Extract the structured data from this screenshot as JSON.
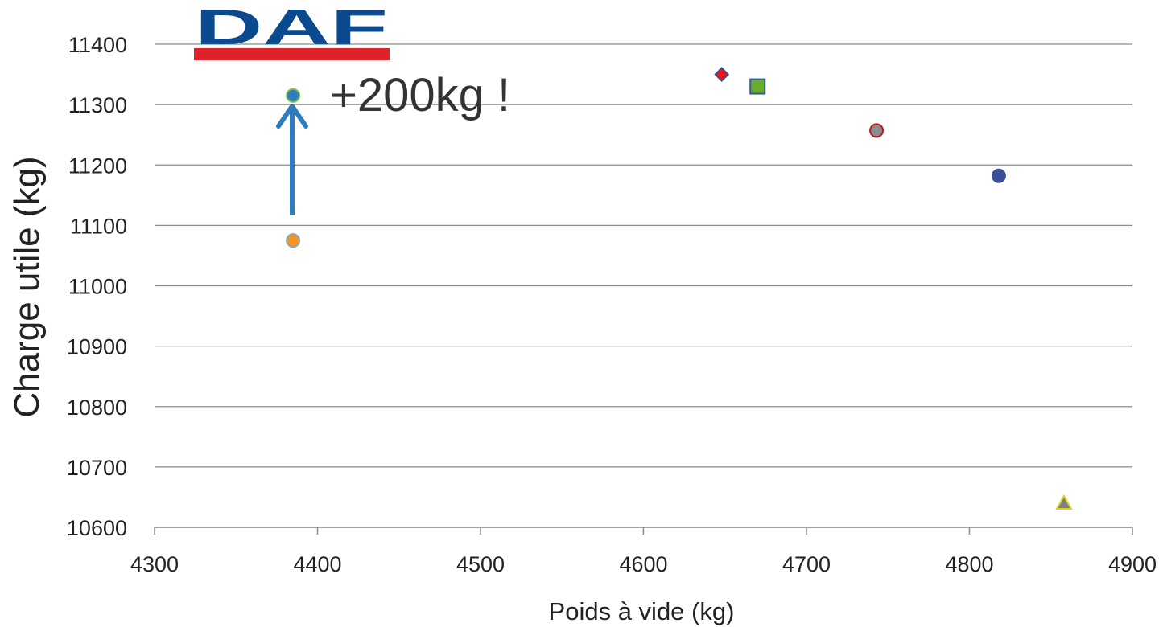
{
  "logo": {
    "text": "DAF",
    "color": "#0b4a8f",
    "bar_color": "#e1202a"
  },
  "annotation": {
    "text": "+200kg !",
    "arrow_color": "#2e7dbf"
  },
  "chart_data": {
    "type": "scatter",
    "title": "",
    "xlabel": "Poids à vide (kg)",
    "ylabel": "Charge utile (kg)",
    "xlim": [
      4300,
      4900
    ],
    "ylim": [
      10600,
      11400
    ],
    "xticks": [
      "4300",
      "4400",
      "4500",
      "4600",
      "4700",
      "4800",
      "4900"
    ],
    "yticks": [
      "10600",
      "10700",
      "10800",
      "10900",
      "11000",
      "11100",
      "11200",
      "11300",
      "11400"
    ],
    "grid": "horizontal",
    "legend": "none",
    "points": [
      {
        "x": 4385,
        "y": 11075,
        "marker": "circle",
        "fill": "#f7931e",
        "stroke": "#8aa6c1"
      },
      {
        "x": 4385,
        "y": 11315,
        "marker": "circle",
        "fill": "#2e7dbf",
        "stroke": "#7cc04b"
      },
      {
        "x": 4648,
        "y": 11350,
        "marker": "diamond",
        "fill": "#e8151b",
        "stroke": "#3a4f9a"
      },
      {
        "x": 4670,
        "y": 11330,
        "marker": "square",
        "fill": "#6aac2e",
        "stroke": "#2e5c9a"
      },
      {
        "x": 4743,
        "y": 11257,
        "marker": "circle",
        "fill": "#8c8c8c",
        "stroke": "#c0141b"
      },
      {
        "x": 4818,
        "y": 11182,
        "marker": "circle",
        "fill": "#3a4f9a",
        "stroke": "#3a4f9a"
      },
      {
        "x": 4858,
        "y": 10640,
        "marker": "triangle",
        "fill": "#7f7f7f",
        "stroke": "#d8d41f"
      }
    ]
  }
}
